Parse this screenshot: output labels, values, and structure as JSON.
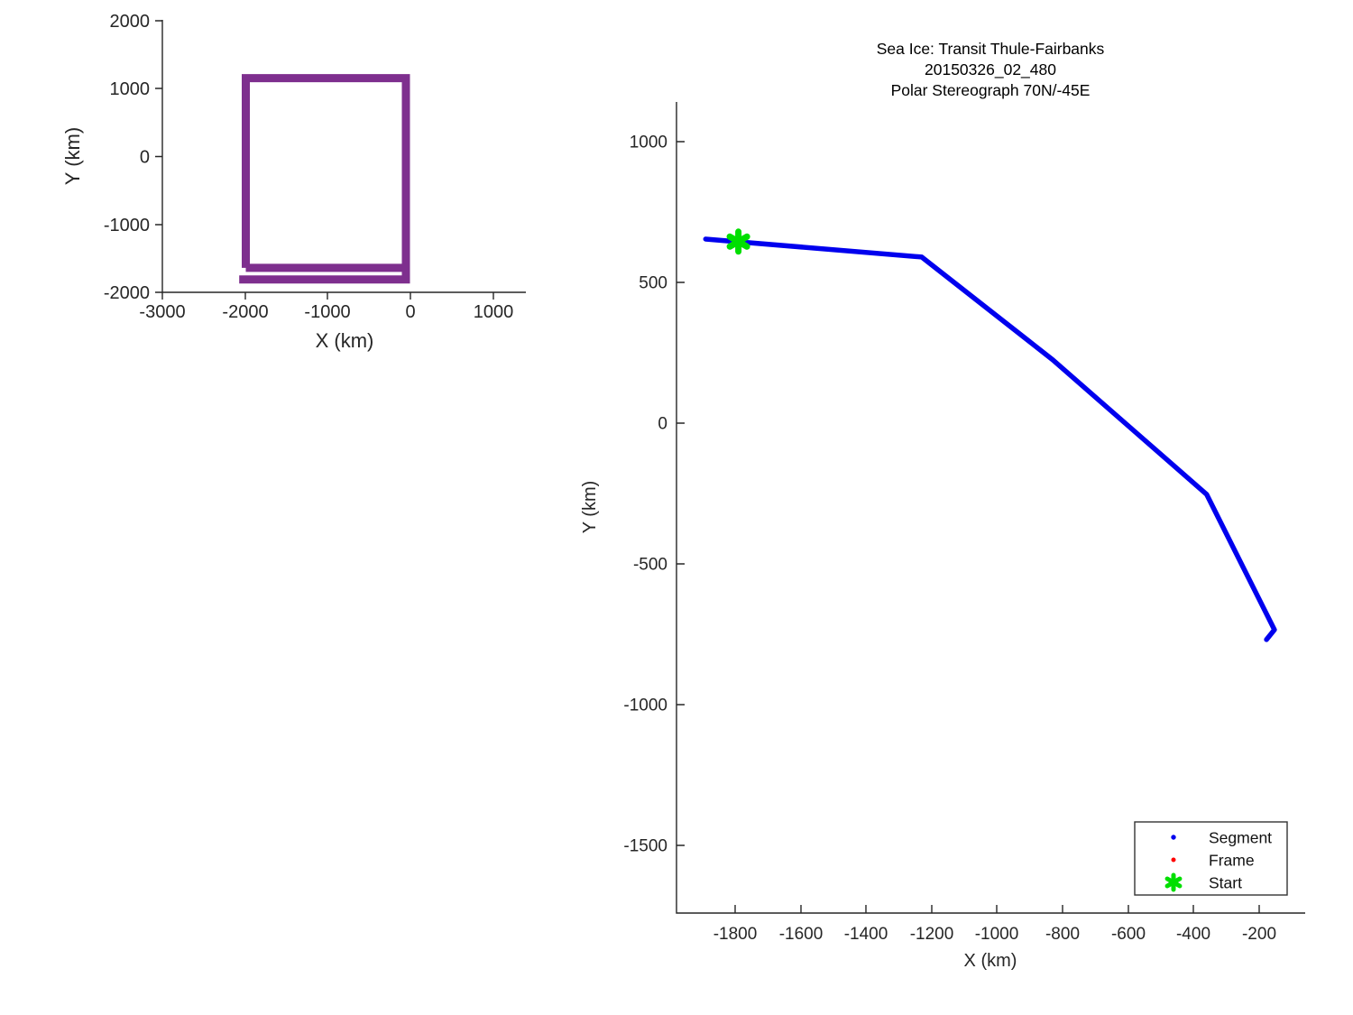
{
  "figure": {
    "background": "#ffffff",
    "text_color": "#262626",
    "axis_color": "#262626"
  },
  "chart_data": [
    {
      "type": "line",
      "name": "overview-subplot",
      "xlabel": "X (km)",
      "ylabel": "Y (km)",
      "xlim": [
        -3000,
        1400
      ],
      "ylim": [
        -2000,
        2000
      ],
      "x_ticks": [
        -3000,
        -2000,
        -1000,
        0,
        1000
      ],
      "y_ticks": [
        2000,
        1000,
        0,
        -1000,
        -2000
      ],
      "grid": false,
      "legend_position": null,
      "series": [
        {
          "name": "survey-region-outline",
          "color": "#7E2F8E",
          "linewidth": 9,
          "points": [
            [
              -1990,
              -1640
            ],
            [
              -1990,
              1155
            ],
            [
              -55,
              1155
            ],
            [
              -55,
              -1810
            ],
            [
              -2070,
              -1810
            ]
          ]
        },
        {
          "name": "survey-region-outline-lower-leg",
          "color": "#7E2F8E",
          "linewidth": 9,
          "points": [
            [
              -1990,
              -1640
            ],
            [
              -55,
              -1640
            ]
          ]
        }
      ]
    },
    {
      "type": "line",
      "name": "transit-subplot",
      "title_lines": [
        "Sea Ice: Transit Thule-Fairbanks",
        "20150326_02_480",
        "Polar Stereograph 70N/-45E"
      ],
      "xlabel": "X (km)",
      "ylabel": "Y (km)",
      "xlim": [
        -1980,
        -60
      ],
      "ylim": [
        -1740,
        1140
      ],
      "x_ticks": [
        -1800,
        -1600,
        -1400,
        -1200,
        -1000,
        -800,
        -600,
        -400,
        -200
      ],
      "y_ticks": [
        1000,
        500,
        0,
        -500,
        -1000,
        -1500
      ],
      "grid": false,
      "legend_position": "lower-right",
      "series": [
        {
          "name": "Segment",
          "color": "#0000EE",
          "marker": "dot",
          "linewidth": 5.5,
          "points": [
            [
              -1890,
              654
            ],
            [
              -1230,
              590
            ],
            [
              -830,
              225
            ],
            [
              -360,
              -253
            ],
            [
              -153,
              -734
            ],
            [
              -177,
              -769
            ]
          ]
        },
        {
          "name": "Frame",
          "color": "#FF0000",
          "marker": "dot",
          "points": []
        },
        {
          "name": "Start",
          "color": "#00DF00",
          "marker": "asterisk",
          "points": [
            [
              -1790,
              645
            ]
          ]
        }
      ]
    }
  ]
}
